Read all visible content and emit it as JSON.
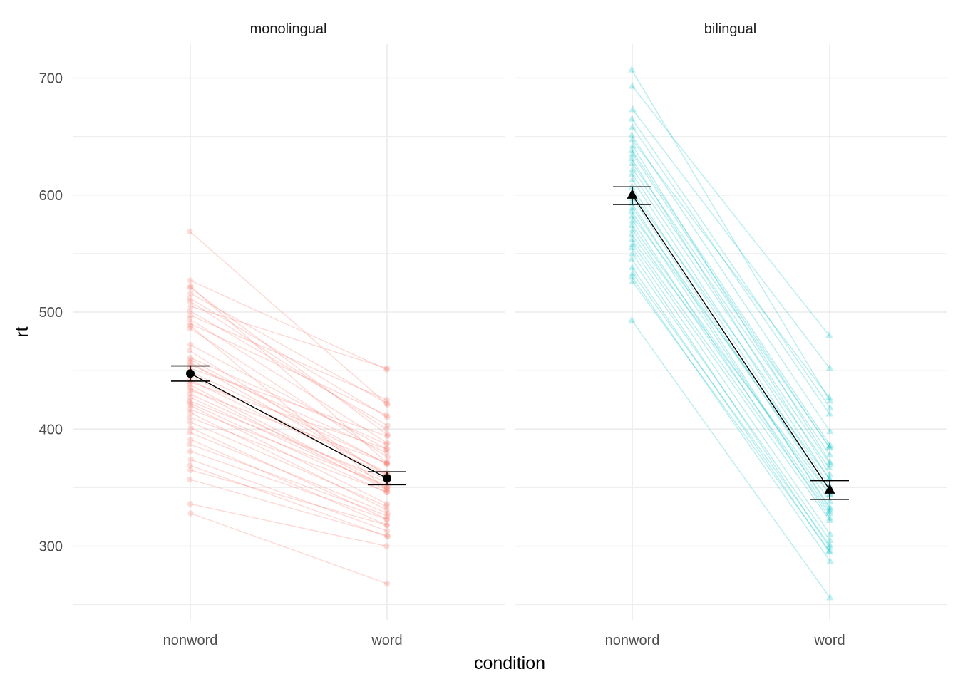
{
  "chart_data": {
    "type": "line",
    "facets": [
      "monolingual",
      "bilingual"
    ],
    "categories": [
      "nonword",
      "word"
    ],
    "xlabel": "condition",
    "ylabel": "rt",
    "ylim": [
      240,
      730
    ],
    "yticks": [
      300,
      400,
      500,
      600,
      700
    ],
    "grid": true,
    "legend": "none",
    "colors": {
      "monolingual": "#F8766D",
      "bilingual": "#00BFC4",
      "summary": "#000000"
    },
    "markers": {
      "monolingual": "circle",
      "bilingual": "triangle"
    },
    "summary": [
      {
        "facet": "monolingual",
        "means": [
          447.5,
          358.0
        ],
        "lower": [
          441.0,
          352.5
        ],
        "upper": [
          454.0,
          363.5
        ]
      },
      {
        "facet": "bilingual",
        "means": [
          600.0,
          348.0
        ],
        "lower": [
          592.0,
          340.0
        ],
        "upper": [
          607.0,
          356.0
        ]
      }
    ],
    "subjects": [
      {
        "facet": "monolingual",
        "pairs": [
          [
            569,
            421
          ],
          [
            527,
            451
          ],
          [
            522,
            371
          ],
          [
            521,
            395
          ],
          [
            516,
            422
          ],
          [
            512,
            410
          ],
          [
            509,
            400
          ],
          [
            505,
            452
          ],
          [
            501,
            403
          ],
          [
            497,
            425
          ],
          [
            494,
            388
          ],
          [
            490,
            412
          ],
          [
            488,
            348
          ],
          [
            486,
            376
          ],
          [
            472,
            383
          ],
          [
            467,
            360
          ],
          [
            461,
            387
          ],
          [
            459,
            370
          ],
          [
            457,
            361
          ],
          [
            455,
            380
          ],
          [
            452,
            394
          ],
          [
            449,
            371
          ],
          [
            445,
            363
          ],
          [
            442,
            360
          ],
          [
            440,
            383
          ],
          [
            438,
            350
          ],
          [
            435,
            348
          ],
          [
            433,
            371
          ],
          [
            430,
            354
          ],
          [
            427,
            350
          ],
          [
            424,
            357
          ],
          [
            422,
            346
          ],
          [
            420,
            336
          ],
          [
            417,
            352
          ],
          [
            414,
            331
          ],
          [
            410,
            346
          ],
          [
            406,
            334
          ],
          [
            401,
            323
          ],
          [
            397,
            328
          ],
          [
            391,
            318
          ],
          [
            387,
            326
          ],
          [
            381,
            323
          ],
          [
            374,
            313
          ],
          [
            369,
            308
          ],
          [
            365,
            318
          ],
          [
            357,
            309
          ],
          [
            336,
            300
          ],
          [
            328,
            268
          ]
        ]
      },
      {
        "facet": "bilingual",
        "pairs": [
          [
            707,
            424
          ],
          [
            693,
            480
          ],
          [
            673,
            452
          ],
          [
            665,
            418
          ],
          [
            658,
            413
          ],
          [
            651,
            398
          ],
          [
            647,
            427
          ],
          [
            642,
            372
          ],
          [
            638,
            386
          ],
          [
            635,
            384
          ],
          [
            631,
            361
          ],
          [
            627,
            385
          ],
          [
            622,
            378
          ],
          [
            618,
            370
          ],
          [
            613,
            357
          ],
          [
            607,
            351
          ],
          [
            602,
            367
          ],
          [
            597,
            344
          ],
          [
            593,
            331
          ],
          [
            589,
            349
          ],
          [
            586,
            333
          ],
          [
            582,
            358
          ],
          [
            578,
            324
          ],
          [
            574,
            338
          ],
          [
            570,
            330
          ],
          [
            566,
            344
          ],
          [
            562,
            328
          ],
          [
            558,
            322
          ],
          [
            555,
            310
          ],
          [
            550,
            299
          ],
          [
            545,
            305
          ],
          [
            538,
            295
          ],
          [
            533,
            301
          ],
          [
            530,
            287
          ],
          [
            526,
            296
          ],
          [
            493,
            256
          ]
        ]
      }
    ]
  }
}
